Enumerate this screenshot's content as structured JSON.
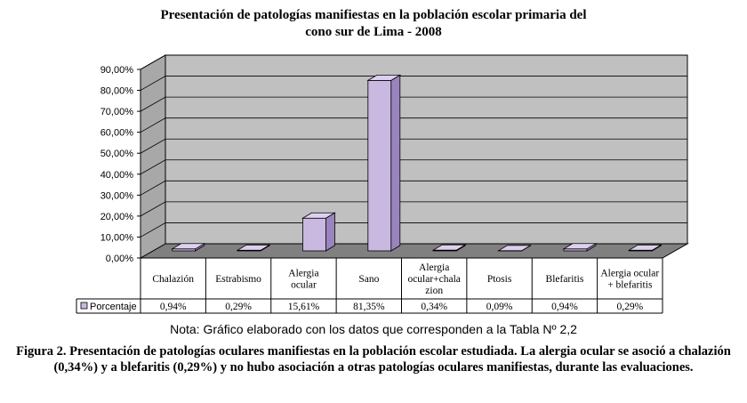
{
  "chart_data": {
    "type": "bar",
    "title_lines": [
      "Presentación de patologías manifiestas en la población escolar primaria del",
      "cono sur de Lima - 2008"
    ],
    "categories": [
      [
        "Chalazión"
      ],
      [
        "Estrabismo"
      ],
      [
        "Alergia",
        "ocular"
      ],
      [
        "Sano"
      ],
      [
        "Alergia",
        "ocular+chala",
        "zion"
      ],
      [
        "Ptosis"
      ],
      [
        "Blefaritis"
      ],
      [
        "Alergia ocular",
        "+ blefaritis"
      ]
    ],
    "series": [
      {
        "name": "Porcentaje",
        "values": [
          0.94,
          0.29,
          15.61,
          81.35,
          0.34,
          0.09,
          0.94,
          0.29
        ],
        "labels": [
          "0,94%",
          "0,29%",
          "15,61%",
          "81,35%",
          "0,34%",
          "0,09%",
          "0,94%",
          "0,29%"
        ]
      }
    ],
    "yticks": [
      "0,00%",
      "10,00%",
      "20,00%",
      "30,00%",
      "40,00%",
      "50,00%",
      "60,00%",
      "70,00%",
      "80,00%",
      "90,00%"
    ],
    "ylim": [
      0,
      90
    ],
    "grid": true,
    "legend": "data-table",
    "colors": {
      "bar": "#c9b8e0",
      "bar_side": "#9a84be",
      "bar_top": "#ddd0ee",
      "wall": "#c0c0c0",
      "floor": "#808080"
    }
  },
  "note": "Nota: Gráfico elaborado con los datos que corresponden a la Tabla Nº 2,2",
  "caption": "Figura 2. Presentación de patologías oculares manifiestas en la población escolar estudiada. La alergia ocular se asoció a chalazión (0,34%) y a blefaritis (0,29%) y no hubo asociación a otras patologías oculares manifiestas, durante las evaluaciones."
}
